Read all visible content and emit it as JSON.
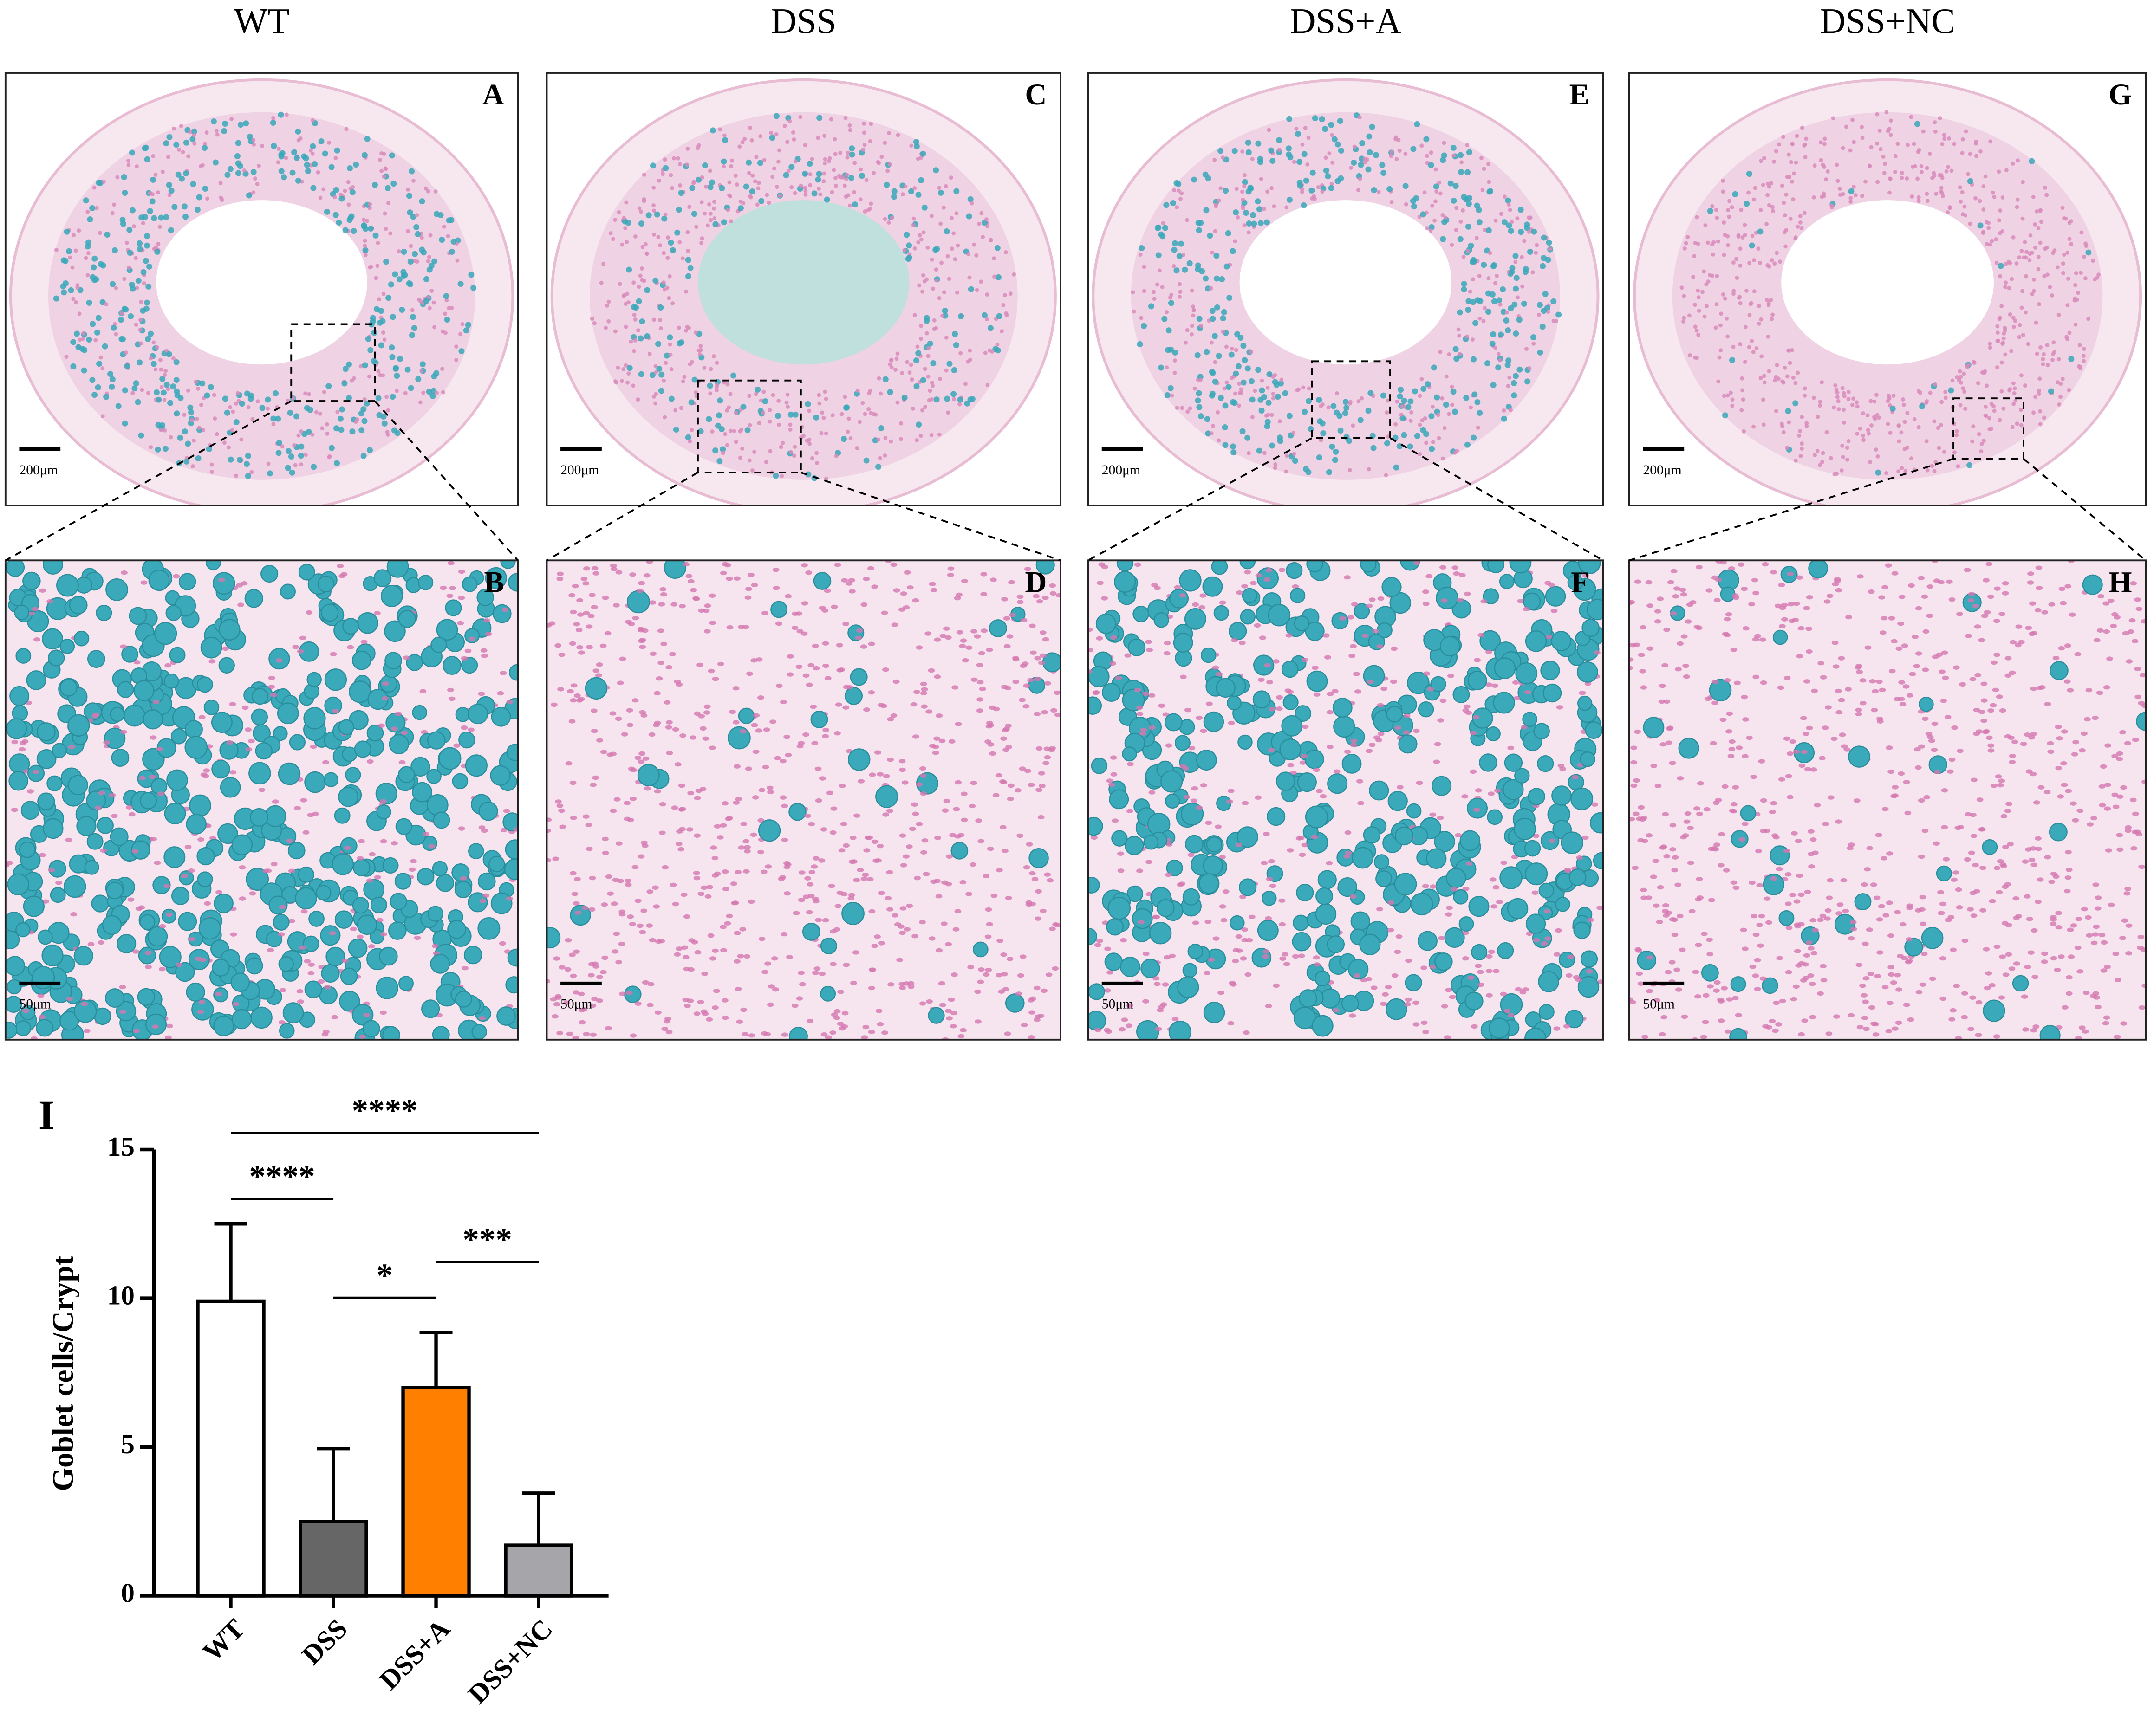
{
  "figure": {
    "columns": [
      "WT",
      "DSS",
      "DSS+A",
      "DSS+NC"
    ],
    "panels": [
      {
        "letter": "A",
        "scale": "200μm"
      },
      {
        "letter": "C",
        "scale": "200μm"
      },
      {
        "letter": "E",
        "scale": "200μm"
      },
      {
        "letter": "G",
        "scale": "200μm"
      },
      {
        "letter": "B",
        "scale": "50μm"
      },
      {
        "letter": "D",
        "scale": "50μm"
      },
      {
        "letter": "F",
        "scale": "50μm"
      },
      {
        "letter": "H",
        "scale": "50μm"
      }
    ],
    "chart_letter": "I"
  },
  "chart_data": {
    "type": "bar",
    "ylabel": "Goblet cells/Crypt",
    "categories": [
      "WT",
      "DSS",
      "DSS+A",
      "DSS+NC"
    ],
    "values": [
      9.9,
      2.5,
      7.0,
      1.7
    ],
    "errors": [
      2.6,
      2.45,
      1.85,
      1.75
    ],
    "colors": [
      "#ffffff",
      "#666666",
      "#ff8000",
      "#a6a6aa"
    ],
    "ylim": [
      0,
      15
    ],
    "yticks": [
      0,
      5,
      10,
      15
    ],
    "comparisons": [
      {
        "from": "WT",
        "to": "DSS+NC",
        "label": "****"
      },
      {
        "from": "WT",
        "to": "DSS",
        "label": "****"
      },
      {
        "from": "DSS",
        "to": "DSS+A",
        "label": "*"
      },
      {
        "from": "DSS+A",
        "to": "DSS+NC",
        "label": "***"
      }
    ]
  }
}
